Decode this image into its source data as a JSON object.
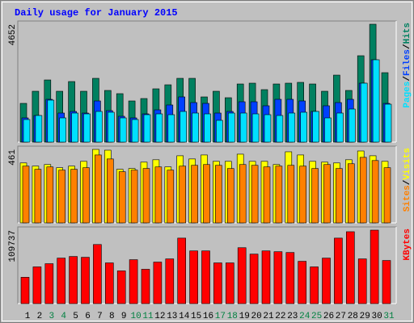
{
  "chart_data": [
    {
      "type": "bar",
      "title": "Daily usage for January 2015",
      "ylim": [
        0,
        4652
      ],
      "yticks": [
        4652
      ],
      "legend_separator": "/",
      "series": [
        {
          "name": "Hits",
          "color": "#008060",
          "values": [
            1529,
            2007,
            2453,
            2007,
            2390,
            2007,
            2517,
            2039,
            1912,
            1625,
            1720,
            2103,
            2262,
            2517,
            2517,
            1784,
            2007,
            1752,
            2294,
            2326,
            2071,
            2294,
            2326,
            2358,
            2294,
            2007,
            2644,
            2039,
            3409,
            4652,
            2740
          ]
        },
        {
          "name": "Files",
          "color": "#0040ff",
          "values": [
            956,
            1051,
            1689,
            1147,
            1211,
            1147,
            1625,
            1243,
            1020,
            956,
            1115,
            1274,
            1466,
            1784,
            1561,
            1529,
            1147,
            1211,
            1593,
            1593,
            1434,
            1689,
            1689,
            1625,
            1211,
            1434,
            1561,
            1689,
            2326,
            3250,
            1529
          ]
        },
        {
          "name": "Pages",
          "color": "#00e0ff",
          "values": [
            892,
            1051,
            1657,
            956,
            1147,
            1115,
            1211,
            1179,
            956,
            892,
            1083,
            1115,
            1083,
            1211,
            1147,
            1115,
            860,
            1147,
            1147,
            1115,
            1083,
            1051,
            1147,
            1179,
            1211,
            956,
            1147,
            1306,
            2326,
            3250,
            1497
          ]
        }
      ]
    },
    {
      "type": "bar",
      "ylim": [
        0,
        461
      ],
      "yticks": [
        461
      ],
      "legend_separator": "/",
      "series": [
        {
          "name": "Visits",
          "color": "#ffff00",
          "values": [
            376,
            356,
            366,
            346,
            356,
            386,
            461,
            456,
            336,
            341,
            381,
            396,
            351,
            421,
            401,
            426,
            386,
            386,
            431,
            386,
            386,
            366,
            446,
            426,
            386,
            381,
            376,
            396,
            451,
            421,
            386
          ]
        },
        {
          "name": "Sites",
          "color": "#ff8000",
          "values": [
            356,
            336,
            351,
            331,
            336,
            346,
            426,
            401,
            321,
            331,
            341,
            351,
            331,
            356,
            361,
            366,
            361,
            341,
            366,
            361,
            351,
            356,
            361,
            356,
            341,
            366,
            341,
            371,
            411,
            391,
            346
          ]
        }
      ]
    },
    {
      "type": "bar",
      "ylim": [
        0,
        109737
      ],
      "yticks": [
        109737
      ],
      "categories": [
        "1",
        "2",
        "3",
        "4",
        "5",
        "6",
        "7",
        "8",
        "9",
        "10",
        "11",
        "12",
        "13",
        "14",
        "15",
        "16",
        "17",
        "18",
        "19",
        "20",
        "21",
        "22",
        "23",
        "24",
        "25",
        "26",
        "27",
        "28",
        "29",
        "30",
        "31"
      ],
      "category_colors": [
        "#000000",
        "#000000",
        "#008040",
        "#008040",
        "#000000",
        "#000000",
        "#000000",
        "#000000",
        "#000000",
        "#008040",
        "#008040",
        "#000000",
        "#000000",
        "#000000",
        "#000000",
        "#000000",
        "#008040",
        "#008040",
        "#000000",
        "#000000",
        "#000000",
        "#000000",
        "#000000",
        "#008040",
        "#008040",
        "#000000",
        "#000000",
        "#000000",
        "#000000",
        "#000000",
        "#008040"
      ],
      "series": [
        {
          "name": "KBytes",
          "color": "#ff0000",
          "values": [
            39369,
            54878,
            59650,
            68001,
            70387,
            69194,
            88282,
            60843,
            48913,
            65615,
            51299,
            62036,
            66808,
            97826,
            78738,
            78738,
            60843,
            60843,
            83510,
            73966,
            78738,
            77545,
            76352,
            63229,
            54878,
            68001,
            97826,
            107370,
            66808,
            109737,
            64422
          ]
        }
      ]
    }
  ]
}
